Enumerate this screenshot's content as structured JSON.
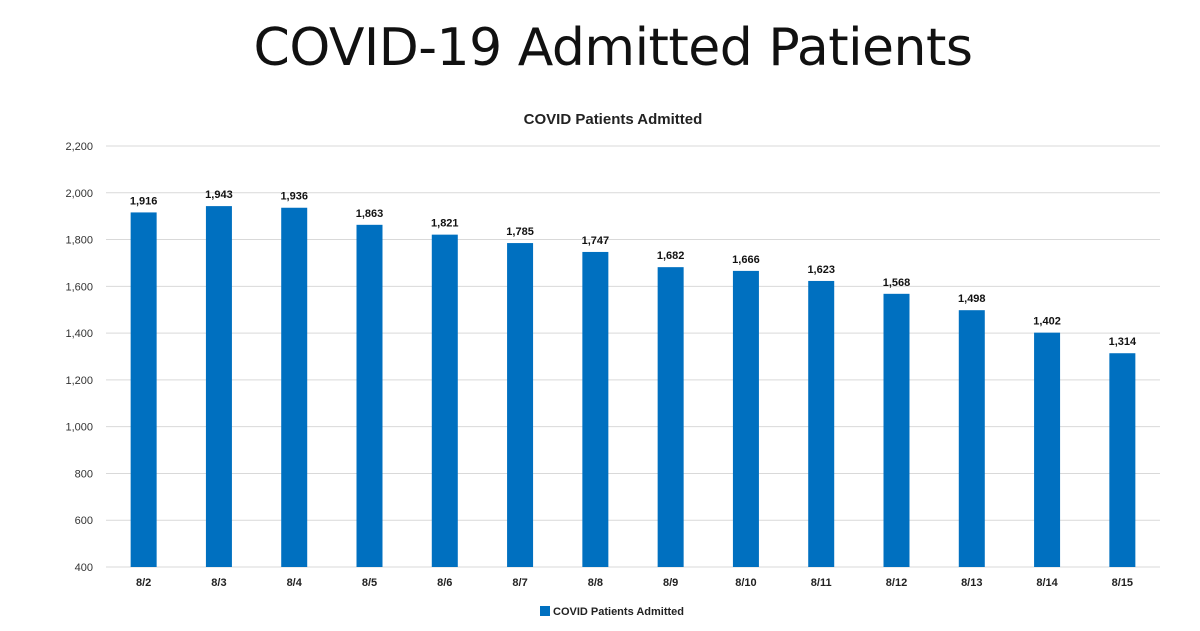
{
  "slide": {
    "title": "COVID-19 Admitted Patients"
  },
  "chart_data": {
    "type": "bar",
    "title": "COVID Patients Admitted",
    "categories": [
      "8/2",
      "8/3",
      "8/4",
      "8/5",
      "8/6",
      "8/7",
      "8/8",
      "8/9",
      "8/10",
      "8/11",
      "8/12",
      "8/13",
      "8/14",
      "8/15"
    ],
    "series": [
      {
        "name": "COVID Patients Admitted",
        "values": [
          1916,
          1943,
          1936,
          1863,
          1821,
          1785,
          1747,
          1682,
          1666,
          1623,
          1568,
          1498,
          1402,
          1314
        ],
        "labels": [
          "1,916",
          "1,943",
          "1,936",
          "1,863",
          "1,821",
          "1,785",
          "1,747",
          "1,682",
          "1,666",
          "1,623",
          "1,568",
          "1,498",
          "1,402",
          "1,314"
        ]
      }
    ],
    "ylim": [
      400,
      2200
    ],
    "yticks": [
      400,
      600,
      800,
      1000,
      1200,
      1400,
      1600,
      1800,
      2000,
      2200
    ],
    "ytick_labels": [
      "400",
      "600",
      "800",
      "1,000",
      "1,200",
      "1,400",
      "1,600",
      "1,800",
      "2,000",
      "2,200"
    ],
    "grid": true,
    "legend_position": "bottom",
    "bar_color": "#0070c0"
  }
}
